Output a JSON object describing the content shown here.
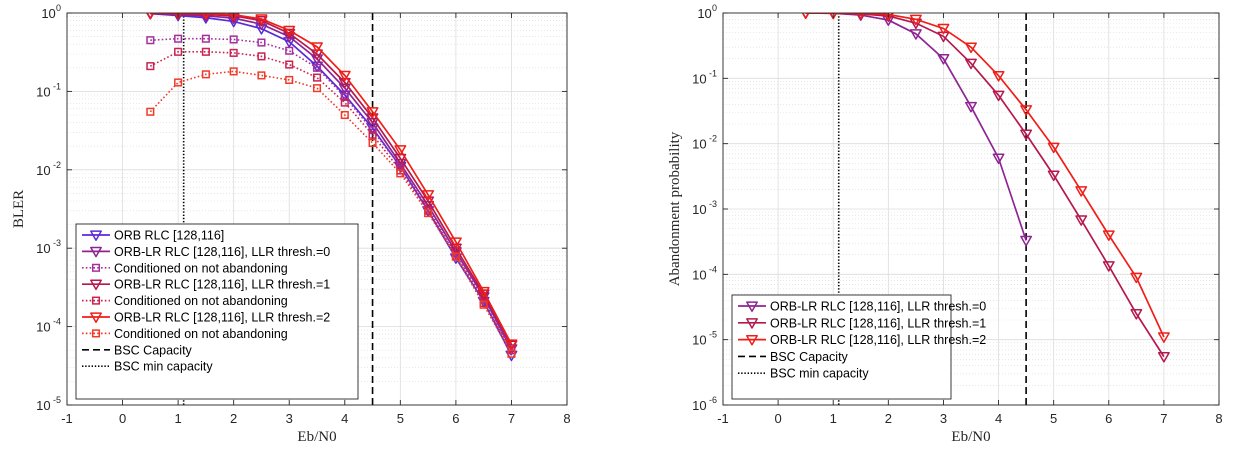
{
  "chart_data": [
    {
      "type": "line",
      "xlabel": "Eb/N0",
      "ylabel": "BLER",
      "y_scale": "log",
      "xlim": [
        -1,
        8
      ],
      "ylim": [
        1e-05,
        1
      ],
      "x_ticks": [
        -1,
        0,
        1,
        2,
        3,
        4,
        5,
        6,
        7,
        8
      ],
      "y_ticks": [
        {
          "base": "10",
          "exp": "0",
          "value": 1
        },
        {
          "base": "10",
          "exp": "-1",
          "value": 0.1
        },
        {
          "base": "10",
          "exp": "-2",
          "value": 0.01
        },
        {
          "base": "10",
          "exp": "-3",
          "value": 0.001
        },
        {
          "base": "10",
          "exp": "-4",
          "value": 0.0001
        },
        {
          "base": "10",
          "exp": "-5",
          "value": 1e-05
        }
      ],
      "grid": true,
      "legend_position": "bottom-left",
      "series": [
        {
          "name": "ORB RLC [128,116]",
          "color": "#5a2bd6",
          "style": "solid",
          "marker": "triangle-down",
          "x": [
            0.5,
            1,
            1.5,
            2,
            2.5,
            3,
            3.5,
            4,
            4.5,
            5,
            5.5,
            6,
            6.5,
            7
          ],
          "y": [
            0.98,
            0.93,
            0.87,
            0.78,
            0.63,
            0.43,
            0.21,
            0.09,
            0.034,
            0.011,
            0.003,
            0.00075,
            0.00021,
            4.3e-05
          ]
        },
        {
          "name": "ORB-LR RLC [128,116], LLR thresh.=0",
          "color": "#8e2493",
          "style": "solid",
          "marker": "triangle-down",
          "x": [
            0.5,
            1,
            1.5,
            2,
            2.5,
            3,
            3.5,
            4,
            4.5,
            5,
            5.5,
            6,
            6.5,
            7
          ],
          "y": [
            0.99,
            0.96,
            0.92,
            0.86,
            0.72,
            0.5,
            0.26,
            0.11,
            0.04,
            0.012,
            0.0035,
            0.0009,
            0.00024,
            5.2e-05
          ]
        },
        {
          "name": "Conditioned on not abandoning",
          "color": "#a5309d",
          "style": "dotted",
          "marker": "square",
          "x": [
            0.5,
            1,
            1.5,
            2,
            2.5,
            3,
            3.5,
            4,
            4.5,
            5,
            5.5,
            6,
            6.5,
            7
          ],
          "y": [
            0.45,
            0.47,
            0.47,
            0.46,
            0.42,
            0.33,
            0.2,
            0.085,
            0.032,
            0.011,
            0.0032,
            0.00085,
            0.00022,
            5e-05
          ]
        },
        {
          "name": "ORB-LR RLC [128,116], LLR thresh.=1",
          "color": "#b5184c",
          "style": "solid",
          "marker": "triangle-down",
          "x": [
            0.5,
            1,
            1.5,
            2,
            2.5,
            3,
            3.5,
            4,
            4.5,
            5,
            5.5,
            6,
            6.5,
            7
          ],
          "y": [
            0.99,
            0.98,
            0.96,
            0.92,
            0.8,
            0.55,
            0.3,
            0.13,
            0.046,
            0.014,
            0.004,
            0.001,
            0.00026,
            5.8e-05
          ]
        },
        {
          "name": "Conditioned on not abandoning",
          "color": "#c92352",
          "style": "dotted",
          "marker": "square",
          "x": [
            0.5,
            1,
            1.5,
            2,
            2.5,
            3,
            3.5,
            4,
            4.5,
            5,
            5.5,
            6,
            6.5,
            7
          ],
          "y": [
            0.21,
            0.32,
            0.32,
            0.31,
            0.28,
            0.22,
            0.15,
            0.072,
            0.028,
            0.0098,
            0.003,
            0.0008,
            0.0002,
            5e-05
          ]
        },
        {
          "name": "ORB-LR RLC [128,116], LLR thresh.=2",
          "color": "#f01e18",
          "style": "solid",
          "marker": "triangle-down",
          "x": [
            0.5,
            1,
            1.5,
            2,
            2.5,
            3,
            3.5,
            4,
            4.5,
            5,
            5.5,
            6,
            6.5,
            7
          ],
          "y": [
            1.0,
            0.99,
            0.98,
            0.95,
            0.84,
            0.6,
            0.37,
            0.16,
            0.055,
            0.018,
            0.0048,
            0.0012,
            0.00028,
            6e-05
          ]
        },
        {
          "name": "Conditioned on not abandoning",
          "color": "#f03a2a",
          "style": "dotted",
          "marker": "square",
          "x": [
            0.5,
            1,
            1.5,
            2,
            2.5,
            3,
            3.5,
            4,
            4.5,
            5,
            5.5,
            6,
            6.5,
            7
          ],
          "y": [
            0.055,
            0.13,
            0.165,
            0.18,
            0.16,
            0.14,
            0.11,
            0.05,
            0.022,
            0.009,
            0.0028,
            0.00078,
            0.00019,
            4.5e-05
          ]
        }
      ],
      "vlines": [
        {
          "name": "BSC Capacity",
          "x": 4.5,
          "style": "dashed",
          "color": "#000000"
        },
        {
          "name": "BSC min capacity",
          "x": 1.1,
          "style": "dotted",
          "color": "#000000"
        }
      ]
    },
    {
      "type": "line",
      "xlabel": "Eb/N0",
      "ylabel": "Abandonment probability",
      "y_scale": "log",
      "xlim": [
        -1,
        8
      ],
      "ylim": [
        1e-06,
        1
      ],
      "x_ticks": [
        -1,
        0,
        1,
        2,
        3,
        4,
        5,
        6,
        7,
        8
      ],
      "y_ticks": [
        {
          "base": "10",
          "exp": "0",
          "value": 1
        },
        {
          "base": "10",
          "exp": "-1",
          "value": 0.1
        },
        {
          "base": "10",
          "exp": "-2",
          "value": 0.01
        },
        {
          "base": "10",
          "exp": "-3",
          "value": 0.001
        },
        {
          "base": "10",
          "exp": "-4",
          "value": 0.0001
        },
        {
          "base": "10",
          "exp": "-5",
          "value": 1e-05
        },
        {
          "base": "10",
          "exp": "-6",
          "value": 1e-06
        }
      ],
      "grid": true,
      "legend_position": "bottom-left",
      "series": [
        {
          "name": "ORB-LR RLC [128,116], LLR thresh.=0",
          "color": "#8e2493",
          "style": "solid",
          "marker": "triangle-down",
          "x": [
            0.5,
            1,
            1.5,
            2,
            2.5,
            3,
            3.5,
            4,
            4.5
          ],
          "y": [
            1.0,
            0.99,
            0.93,
            0.78,
            0.48,
            0.2,
            0.037,
            0.006,
            0.00033
          ]
        },
        {
          "name": "ORB-LR RLC [128,116], LLR thresh.=1",
          "color": "#b5184c",
          "style": "solid",
          "marker": "triangle-down",
          "x": [
            0.5,
            1,
            1.5,
            2,
            2.5,
            3,
            3.5,
            4,
            4.5,
            5,
            5.5,
            6,
            6.5,
            7
          ],
          "y": [
            1.0,
            0.99,
            0.97,
            0.9,
            0.7,
            0.44,
            0.17,
            0.055,
            0.014,
            0.0033,
            0.00068,
            0.000135,
            2.5e-05,
            5.5e-06
          ]
        },
        {
          "name": "ORB-LR RLC [128,116], LLR thresh.=2",
          "color": "#f01e18",
          "style": "solid",
          "marker": "triangle-down",
          "x": [
            0.5,
            1,
            1.5,
            2,
            2.5,
            3,
            3.5,
            4,
            4.5,
            5,
            5.5,
            6,
            6.5,
            7
          ],
          "y": [
            1.0,
            1.0,
            0.99,
            0.95,
            0.8,
            0.58,
            0.3,
            0.11,
            0.033,
            0.0088,
            0.0019,
            0.0004,
            9e-05,
            1.1e-05
          ]
        }
      ],
      "vlines": [
        {
          "name": "BSC Capacity",
          "x": 4.5,
          "style": "dashed",
          "color": "#000000"
        },
        {
          "name": "BSC min capacity",
          "x": 1.1,
          "style": "dotted",
          "color": "#000000"
        }
      ]
    }
  ]
}
